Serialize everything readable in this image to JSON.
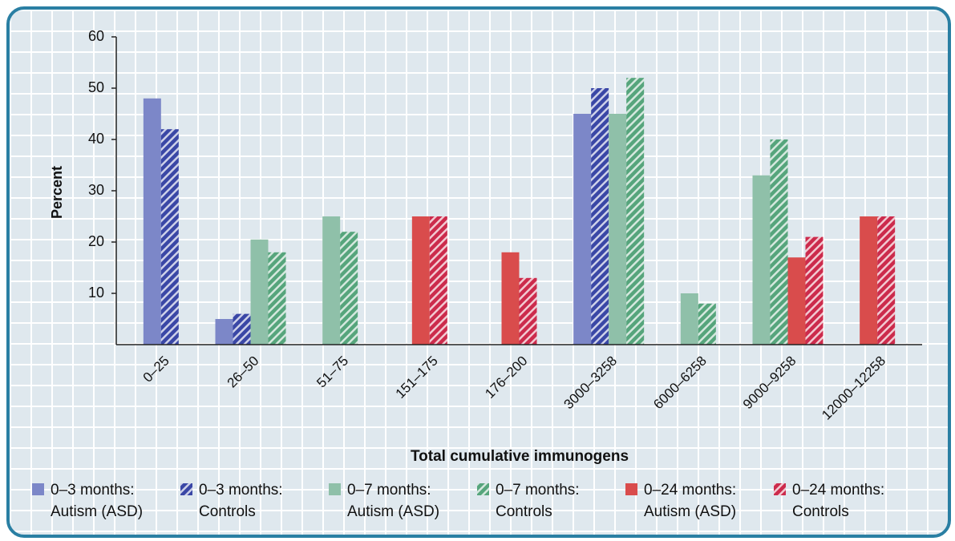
{
  "chart_data": {
    "type": "bar",
    "x_label": "Total cumulative immunogens",
    "y_label": "Percent",
    "categories": [
      "0–25",
      "26–50",
      "51–75",
      "151–175",
      "176–200",
      "3000–3258",
      "6000–6258",
      "9000–9258",
      "12000–12258"
    ],
    "series": [
      {
        "name": "0–3 months: Autism (ASD)",
        "color": "#7c87c8",
        "hatched": false,
        "values": [
          48,
          5,
          null,
          null,
          null,
          45,
          null,
          null,
          null
        ]
      },
      {
        "name": "0–3 months: Controls",
        "color": "#3a47a6",
        "hatched": true,
        "values": [
          42,
          6,
          null,
          null,
          null,
          50,
          null,
          null,
          null
        ]
      },
      {
        "name": "0–7 months: Autism (ASD)",
        "color": "#8fc0a9",
        "hatched": false,
        "values": [
          null,
          20.5,
          25,
          null,
          null,
          45,
          10,
          33,
          null
        ]
      },
      {
        "name": "0–7 months: Controls",
        "color": "#56a57c",
        "hatched": true,
        "values": [
          null,
          18,
          22,
          null,
          null,
          52,
          8,
          40,
          null
        ]
      },
      {
        "name": "0–24 months: Autism (ASD)",
        "color": "#d94c4c",
        "hatched": false,
        "values": [
          null,
          null,
          null,
          25,
          18,
          null,
          null,
          17,
          25
        ]
      },
      {
        "name": "0–24 months: Controls",
        "color": "#cc2b4c",
        "hatched": true,
        "values": [
          null,
          null,
          null,
          25,
          13,
          null,
          null,
          21,
          25
        ]
      }
    ],
    "ylim": [
      0,
      60
    ],
    "yticks": [
      10,
      20,
      30,
      40,
      50,
      60
    ],
    "grid": false
  }
}
